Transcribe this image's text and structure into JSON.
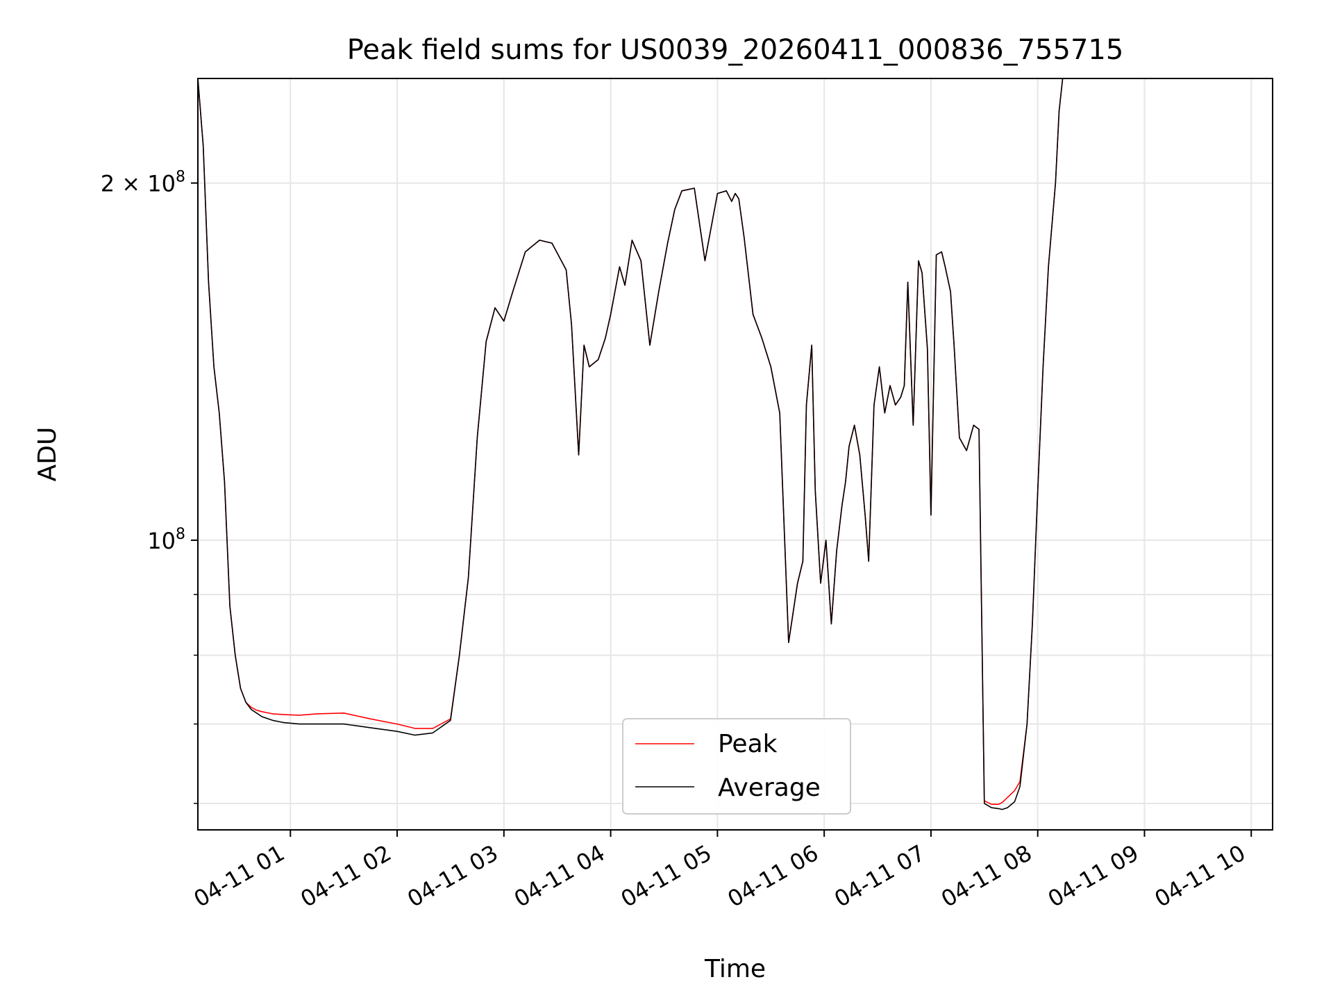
{
  "chart_data": {
    "type": "line",
    "title": "Peak field sums for US0039_20260411_000836_755715",
    "xlabel": "Time",
    "ylabel": "ADU",
    "y_scale": "log",
    "grid": true,
    "legend_position": "lower-center",
    "x_ticks": [
      "04-11 01",
      "04-11 02",
      "04-11 03",
      "04-11 04",
      "04-11 05",
      "04-11 06",
      "04-11 07",
      "04-11 08",
      "04-11 09",
      "04-11 10"
    ],
    "y_ticks": [
      {
        "value": 200000000,
        "base": "2 × 10",
        "exp": "8"
      },
      {
        "value": 100000000,
        "base": "10",
        "exp": "8"
      }
    ],
    "y_minor_ticks": [
      60000000,
      70000000,
      80000000,
      90000000
    ],
    "xlim": [
      "2026-04-11 00:08",
      "2026-04-11 10:12"
    ],
    "ylim": [
      57000000,
      245000000
    ],
    "series": [
      {
        "name": "Peak",
        "color": "#ff0000"
      },
      {
        "name": "Average",
        "color": "#000000"
      }
    ],
    "x": [
      "2026-04-11 00:08",
      "2026-04-11 00:11",
      "2026-04-11 00:14",
      "2026-04-11 00:17",
      "2026-04-11 00:20",
      "2026-04-11 00:23",
      "2026-04-11 00:26",
      "2026-04-11 00:29",
      "2026-04-11 00:32",
      "2026-04-11 00:35",
      "2026-04-11 00:38",
      "2026-04-11 00:41",
      "2026-04-11 00:44",
      "2026-04-11 00:50",
      "2026-04-11 00:56",
      "2026-04-11 01:05",
      "2026-04-11 01:15",
      "2026-04-11 01:30",
      "2026-04-11 01:45",
      "2026-04-11 02:00",
      "2026-04-11 02:10",
      "2026-04-11 02:20",
      "2026-04-11 02:30",
      "2026-04-11 02:35",
      "2026-04-11 02:40",
      "2026-04-11 02:45",
      "2026-04-11 02:50",
      "2026-04-11 02:55",
      "2026-04-11 03:00",
      "2026-04-11 03:05",
      "2026-04-11 03:12",
      "2026-04-11 03:20",
      "2026-04-11 03:27",
      "2026-04-11 03:35",
      "2026-04-11 03:38",
      "2026-04-11 03:42",
      "2026-04-11 03:45",
      "2026-04-11 03:48",
      "2026-04-11 03:53",
      "2026-04-11 03:57",
      "2026-04-11 04:00",
      "2026-04-11 04:05",
      "2026-04-11 04:08",
      "2026-04-11 04:12",
      "2026-04-11 04:17",
      "2026-04-11 04:22",
      "2026-04-11 04:27",
      "2026-04-11 04:32",
      "2026-04-11 04:36",
      "2026-04-11 04:40",
      "2026-04-11 04:47",
      "2026-04-11 04:53",
      "2026-04-11 05:00",
      "2026-04-11 05:05",
      "2026-04-11 05:08",
      "2026-04-11 05:10",
      "2026-04-11 05:12",
      "2026-04-11 05:15",
      "2026-04-11 05:20",
      "2026-04-11 05:25",
      "2026-04-11 05:30",
      "2026-04-11 05:35",
      "2026-04-11 05:40",
      "2026-04-11 05:45",
      "2026-04-11 05:48",
      "2026-04-11 05:50",
      "2026-04-11 05:53",
      "2026-04-11 05:55",
      "2026-04-11 05:58",
      "2026-04-11 06:01",
      "2026-04-11 06:04",
      "2026-04-11 06:07",
      "2026-04-11 06:10",
      "2026-04-11 06:12",
      "2026-04-11 06:14",
      "2026-04-11 06:17",
      "2026-04-11 06:20",
      "2026-04-11 06:23",
      "2026-04-11 06:25",
      "2026-04-11 06:28",
      "2026-04-11 06:31",
      "2026-04-11 06:34",
      "2026-04-11 06:37",
      "2026-04-11 06:40",
      "2026-04-11 06:43",
      "2026-04-11 06:45",
      "2026-04-11 06:47",
      "2026-04-11 06:50",
      "2026-04-11 06:53",
      "2026-04-11 06:55",
      "2026-04-11 06:58",
      "2026-04-11 07:00",
      "2026-04-11 07:03",
      "2026-04-11 07:06",
      "2026-04-11 07:08",
      "2026-04-11 07:11",
      "2026-04-11 07:13",
      "2026-04-11 07:16",
      "2026-04-11 07:20",
      "2026-04-11 07:24",
      "2026-04-11 07:27",
      "2026-04-11 07:30",
      "2026-04-11 07:34",
      "2026-04-11 07:38",
      "2026-04-11 07:40",
      "2026-04-11 07:43",
      "2026-04-11 07:47",
      "2026-04-11 07:50",
      "2026-04-11 07:54",
      "2026-04-11 07:57",
      "2026-04-11 08:00",
      "2026-04-11 08:03",
      "2026-04-11 08:06",
      "2026-04-11 08:10",
      "2026-04-11 08:12",
      "2026-04-11 08:14",
      "2026-04-11 08:16",
      "2026-04-11 08:18",
      "2026-04-11 08:20",
      "2026-04-11 08:25",
      "2026-04-11 08:35",
      "2026-04-11 09:00",
      "2026-04-11 09:20",
      "2026-04-11 09:30",
      "2026-04-11 09:35",
      "2026-04-11 09:40",
      "2026-04-11 09:45",
      "2026-04-11 09:48",
      "2026-04-11 09:52",
      "2026-04-11 09:55",
      "2026-04-11 09:58",
      "2026-04-11 10:00",
      "2026-04-11 10:03",
      "2026-04-11 10:06"
    ],
    "average": [
      245000000,
      215000000,
      165000000,
      140000000,
      128000000,
      112000000,
      88000000,
      80000000,
      75000000,
      73000000,
      72000000,
      71500000,
      71000000,
      70500000,
      70200000,
      70000000,
      70000000,
      70000000,
      69500000,
      69000000,
      68500000,
      68800000,
      70500000,
      80000000,
      93000000,
      122000000,
      147000000,
      157000000,
      153000000,
      162000000,
      175000000,
      179000000,
      178000000,
      169000000,
      152000000,
      118000000,
      146000000,
      140000000,
      142000000,
      148000000,
      155000000,
      170000000,
      164000000,
      179000000,
      172000000,
      146000000,
      162000000,
      178000000,
      190000000,
      197000000,
      198000000,
      172000000,
      196000000,
      197000000,
      193000000,
      196000000,
      194000000,
      180000000,
      155000000,
      148000000,
      140000000,
      128000000,
      82000000,
      92000000,
      96000000,
      130000000,
      146000000,
      110000000,
      92000000,
      100000000,
      85000000,
      98000000,
      107000000,
      112000000,
      120000000,
      125000000,
      118000000,
      105000000,
      96000000,
      130000000,
      140000000,
      128000000,
      135000000,
      130000000,
      132000000,
      135000000,
      165000000,
      125000000,
      172000000,
      168000000,
      145000000,
      105000000,
      174000000,
      175000000,
      170000000,
      162000000,
      146000000,
      122000000,
      119000000,
      125000000,
      124000000,
      60000000,
      59500000,
      59400000,
      59300000,
      59500000,
      60200000,
      62000000,
      70000000,
      85000000,
      110000000,
      140000000,
      170000000,
      200000000,
      230000000,
      245000000,
      245000000,
      245000000,
      245000000,
      245000000,
      245000000,
      245000000,
      245000000,
      245000000,
      245000000,
      245000000,
      245000000,
      245000000,
      245000000,
      245000000,
      245000000,
      245000000
    ],
    "peak_offsets": [
      0,
      0,
      0,
      0,
      0,
      0,
      0,
      0,
      0,
      0,
      300000,
      400000,
      700000,
      900000,
      1100000,
      1200000,
      1400000,
      1500000,
      1200000,
      1000000,
      900000,
      600000,
      200000,
      0,
      0,
      0,
      0,
      0,
      0,
      0,
      0,
      0,
      0,
      0,
      0,
      0,
      0,
      0,
      0,
      0,
      0,
      0,
      0,
      0,
      0,
      0,
      0,
      0,
      0,
      0,
      0,
      0,
      0,
      0,
      0,
      0,
      0,
      0,
      0,
      0,
      0,
      0,
      0,
      0,
      0,
      0,
      0,
      0,
      0,
      0,
      0,
      0,
      0,
      0,
      0,
      0,
      0,
      0,
      0,
      0,
      0,
      0,
      0,
      0,
      0,
      0,
      0,
      0,
      0,
      0,
      0,
      0,
      0,
      0,
      0,
      0,
      0,
      0,
      0,
      0,
      0,
      300000,
      400000,
      500000,
      800000,
      1200000,
      1300000,
      600000,
      0,
      0,
      0,
      0,
      0,
      0,
      0,
      0,
      0,
      0,
      0,
      0,
      0,
      0,
      0,
      0,
      0,
      0,
      0,
      0,
      0,
      0,
      0,
      0
    ]
  }
}
